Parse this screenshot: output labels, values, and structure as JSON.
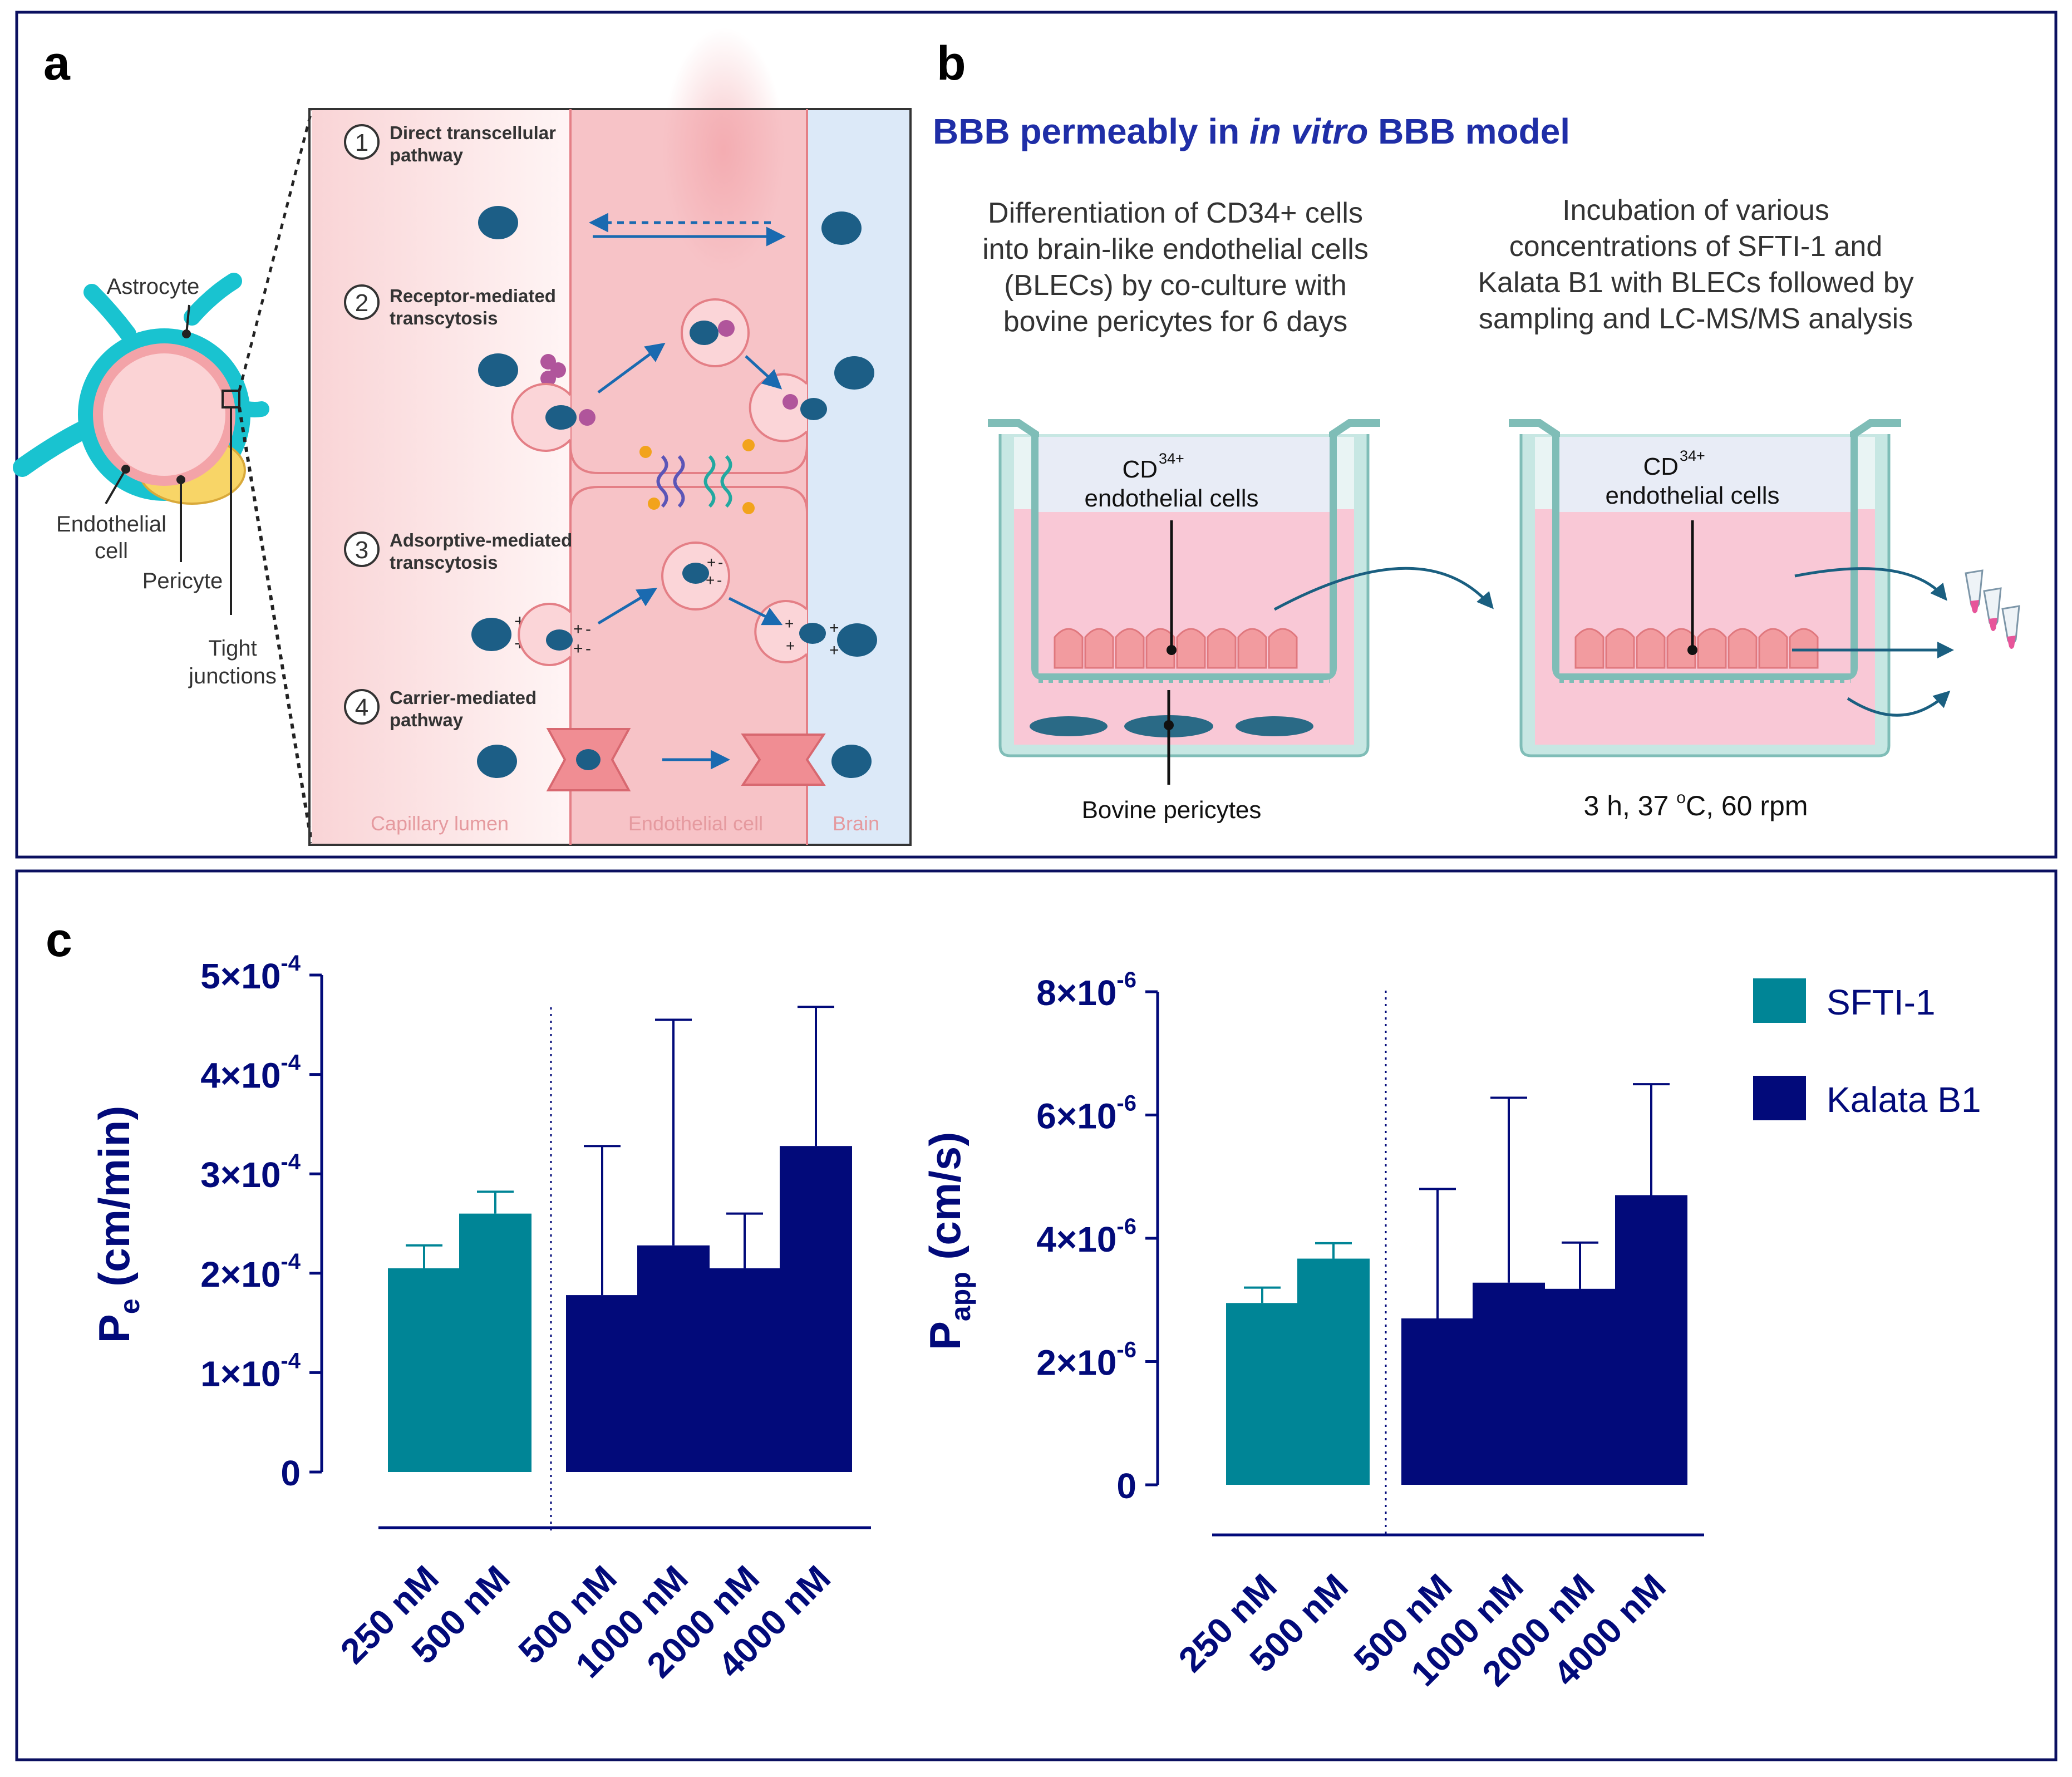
{
  "colors": {
    "frame": "#0b1060",
    "navy": "#020a7a",
    "teal": "#008596",
    "lumen": "#fbe1e3",
    "endothelium": "#f7c3c7",
    "brain": "#dce9f8",
    "cell_blue": "#1c5e86",
    "astrocyte": "#19c3d0",
    "pericyte": "#f8d567",
    "media_pink": "#f9c8d6",
    "insert_wall": "#c7e7e3",
    "insert_border": "#7fbdb7",
    "arrow": "#1a6ab0"
  },
  "panel_a": {
    "label": "a",
    "cross_section": {
      "astrocyte": "Astrocyte",
      "endothelial_line1": "Endothelial",
      "endothelial_line2": "cell",
      "pericyte": "Pericyte",
      "tight_line1": "Tight",
      "tight_line2": "junctions"
    },
    "pathways": [
      {
        "number": "1",
        "line1": "Direct transcellular",
        "line2": "pathway"
      },
      {
        "number": "2",
        "line1": "Receptor-mediated",
        "line2": "transcytosis"
      },
      {
        "number": "3",
        "line1": "Adsorptive-mediated",
        "line2": "transcytosis"
      },
      {
        "number": "4",
        "line1": "Carrier-mediated",
        "line2": "pathway"
      }
    ],
    "zones": {
      "lumen": "Capillary lumen",
      "endothelial": "Endothelial cell",
      "brain": "Brain"
    },
    "charges": {
      "plus": "+",
      "minus": "-"
    }
  },
  "panel_b": {
    "label": "b",
    "title_pre": "BBB permeably in ",
    "title_italic": "in vitro",
    "title_post": " BBB model",
    "step1_lines": [
      "Differentiation of CD34+ cells",
      "into brain-like endothelial cells",
      "(BLECs) by co-culture with",
      "bovine pericytes for 6 days"
    ],
    "step2_lines": [
      "Incubation of various",
      "concentrations of SFTI-1 and",
      "Kalata B1 with BLECs followed by",
      "sampling and LC-MS/MS analysis"
    ],
    "insert_label_cd": "CD",
    "insert_label_sup": "34+",
    "insert_label_line2": "endothelial cells",
    "pericyte_label": "Bovine pericytes",
    "conditions_pre": "3 h, 37 ",
    "conditions_sup": "o",
    "conditions_post": "C, 60 rpm"
  },
  "panel_c": {
    "label": "c",
    "legend": [
      {
        "name": "SFTI-1",
        "color": "#008596"
      },
      {
        "name": "Kalata B1",
        "color": "#020a7a"
      }
    ]
  },
  "chart_data": [
    {
      "type": "bar",
      "title": "",
      "ylabel_main": "P",
      "ylabel_sub": "e",
      "ylabel_unit": " (cm/min)",
      "xlabel": "",
      "categories": [
        "250 nM",
        "500 nM",
        "500 nM",
        "1000 nM",
        "2000 nM",
        "4000 nM"
      ],
      "series": [
        {
          "name": "SFTI-1",
          "values": [
            0.000205,
            0.00026,
            null,
            null,
            null,
            null
          ],
          "errors": [
            2.3e-05,
            2.2e-05,
            null,
            null,
            null,
            null
          ]
        },
        {
          "name": "Kalata B1",
          "values": [
            null,
            null,
            0.000178,
            0.000228,
            0.000205,
            0.000328
          ],
          "errors": [
            null,
            null,
            0.00015,
            0.000227,
            5.5e-05,
            0.00014
          ]
        }
      ],
      "ylim": [
        0,
        0.0005
      ],
      "yticks": [
        {
          "value": 0,
          "mant": "0",
          "exp": ""
        },
        {
          "value": 0.0001,
          "mant": "1×10",
          "exp": "-4"
        },
        {
          "value": 0.0002,
          "mant": "2×10",
          "exp": "-4"
        },
        {
          "value": 0.0003,
          "mant": "3×10",
          "exp": "-4"
        },
        {
          "value": 0.0004,
          "mant": "4×10",
          "exp": "-4"
        },
        {
          "value": 0.0005,
          "mant": "5×10",
          "exp": "-4"
        }
      ],
      "grid": false,
      "legend": "right"
    },
    {
      "type": "bar",
      "title": "",
      "ylabel_main": "P",
      "ylabel_sub": "app",
      "ylabel_unit": " (cm/s)",
      "xlabel": "",
      "categories": [
        "250 nM",
        "500 nM",
        "500 nM",
        "1000 nM",
        "2000 nM",
        "4000 nM"
      ],
      "series": [
        {
          "name": "SFTI-1",
          "values": [
            2.95e-06,
            3.67e-06,
            null,
            null,
            null,
            null
          ],
          "errors": [
            2.5e-07,
            2.5e-07,
            null,
            null,
            null,
            null
          ]
        },
        {
          "name": "Kalata B1",
          "values": [
            null,
            null,
            2.7e-06,
            3.28e-06,
            3.18e-06,
            4.7e-06
          ],
          "errors": [
            null,
            null,
            2.1e-06,
            3e-06,
            7.5e-07,
            1.8e-06
          ]
        }
      ],
      "ylim": [
        0,
        8e-06
      ],
      "yticks": [
        {
          "value": 0,
          "mant": "0",
          "exp": ""
        },
        {
          "value": 2e-06,
          "mant": "2×10",
          "exp": "-6"
        },
        {
          "value": 4e-06,
          "mant": "4×10",
          "exp": "-6"
        },
        {
          "value": 6e-06,
          "mant": "6×10",
          "exp": "-6"
        },
        {
          "value": 8e-06,
          "mant": "8×10",
          "exp": "-6"
        }
      ],
      "grid": false,
      "legend": "right"
    }
  ]
}
